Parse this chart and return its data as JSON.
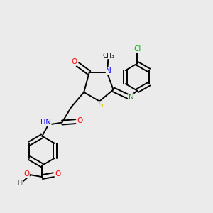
{
  "background_color": "#ebebeb",
  "atom_colors": {
    "C": "#000000",
    "N": "#0000ff",
    "O": "#ff0000",
    "S": "#cccc00",
    "Cl": "#00bb00",
    "H": "#777777"
  },
  "figsize": [
    3.0,
    3.0
  ],
  "dpi": 100
}
